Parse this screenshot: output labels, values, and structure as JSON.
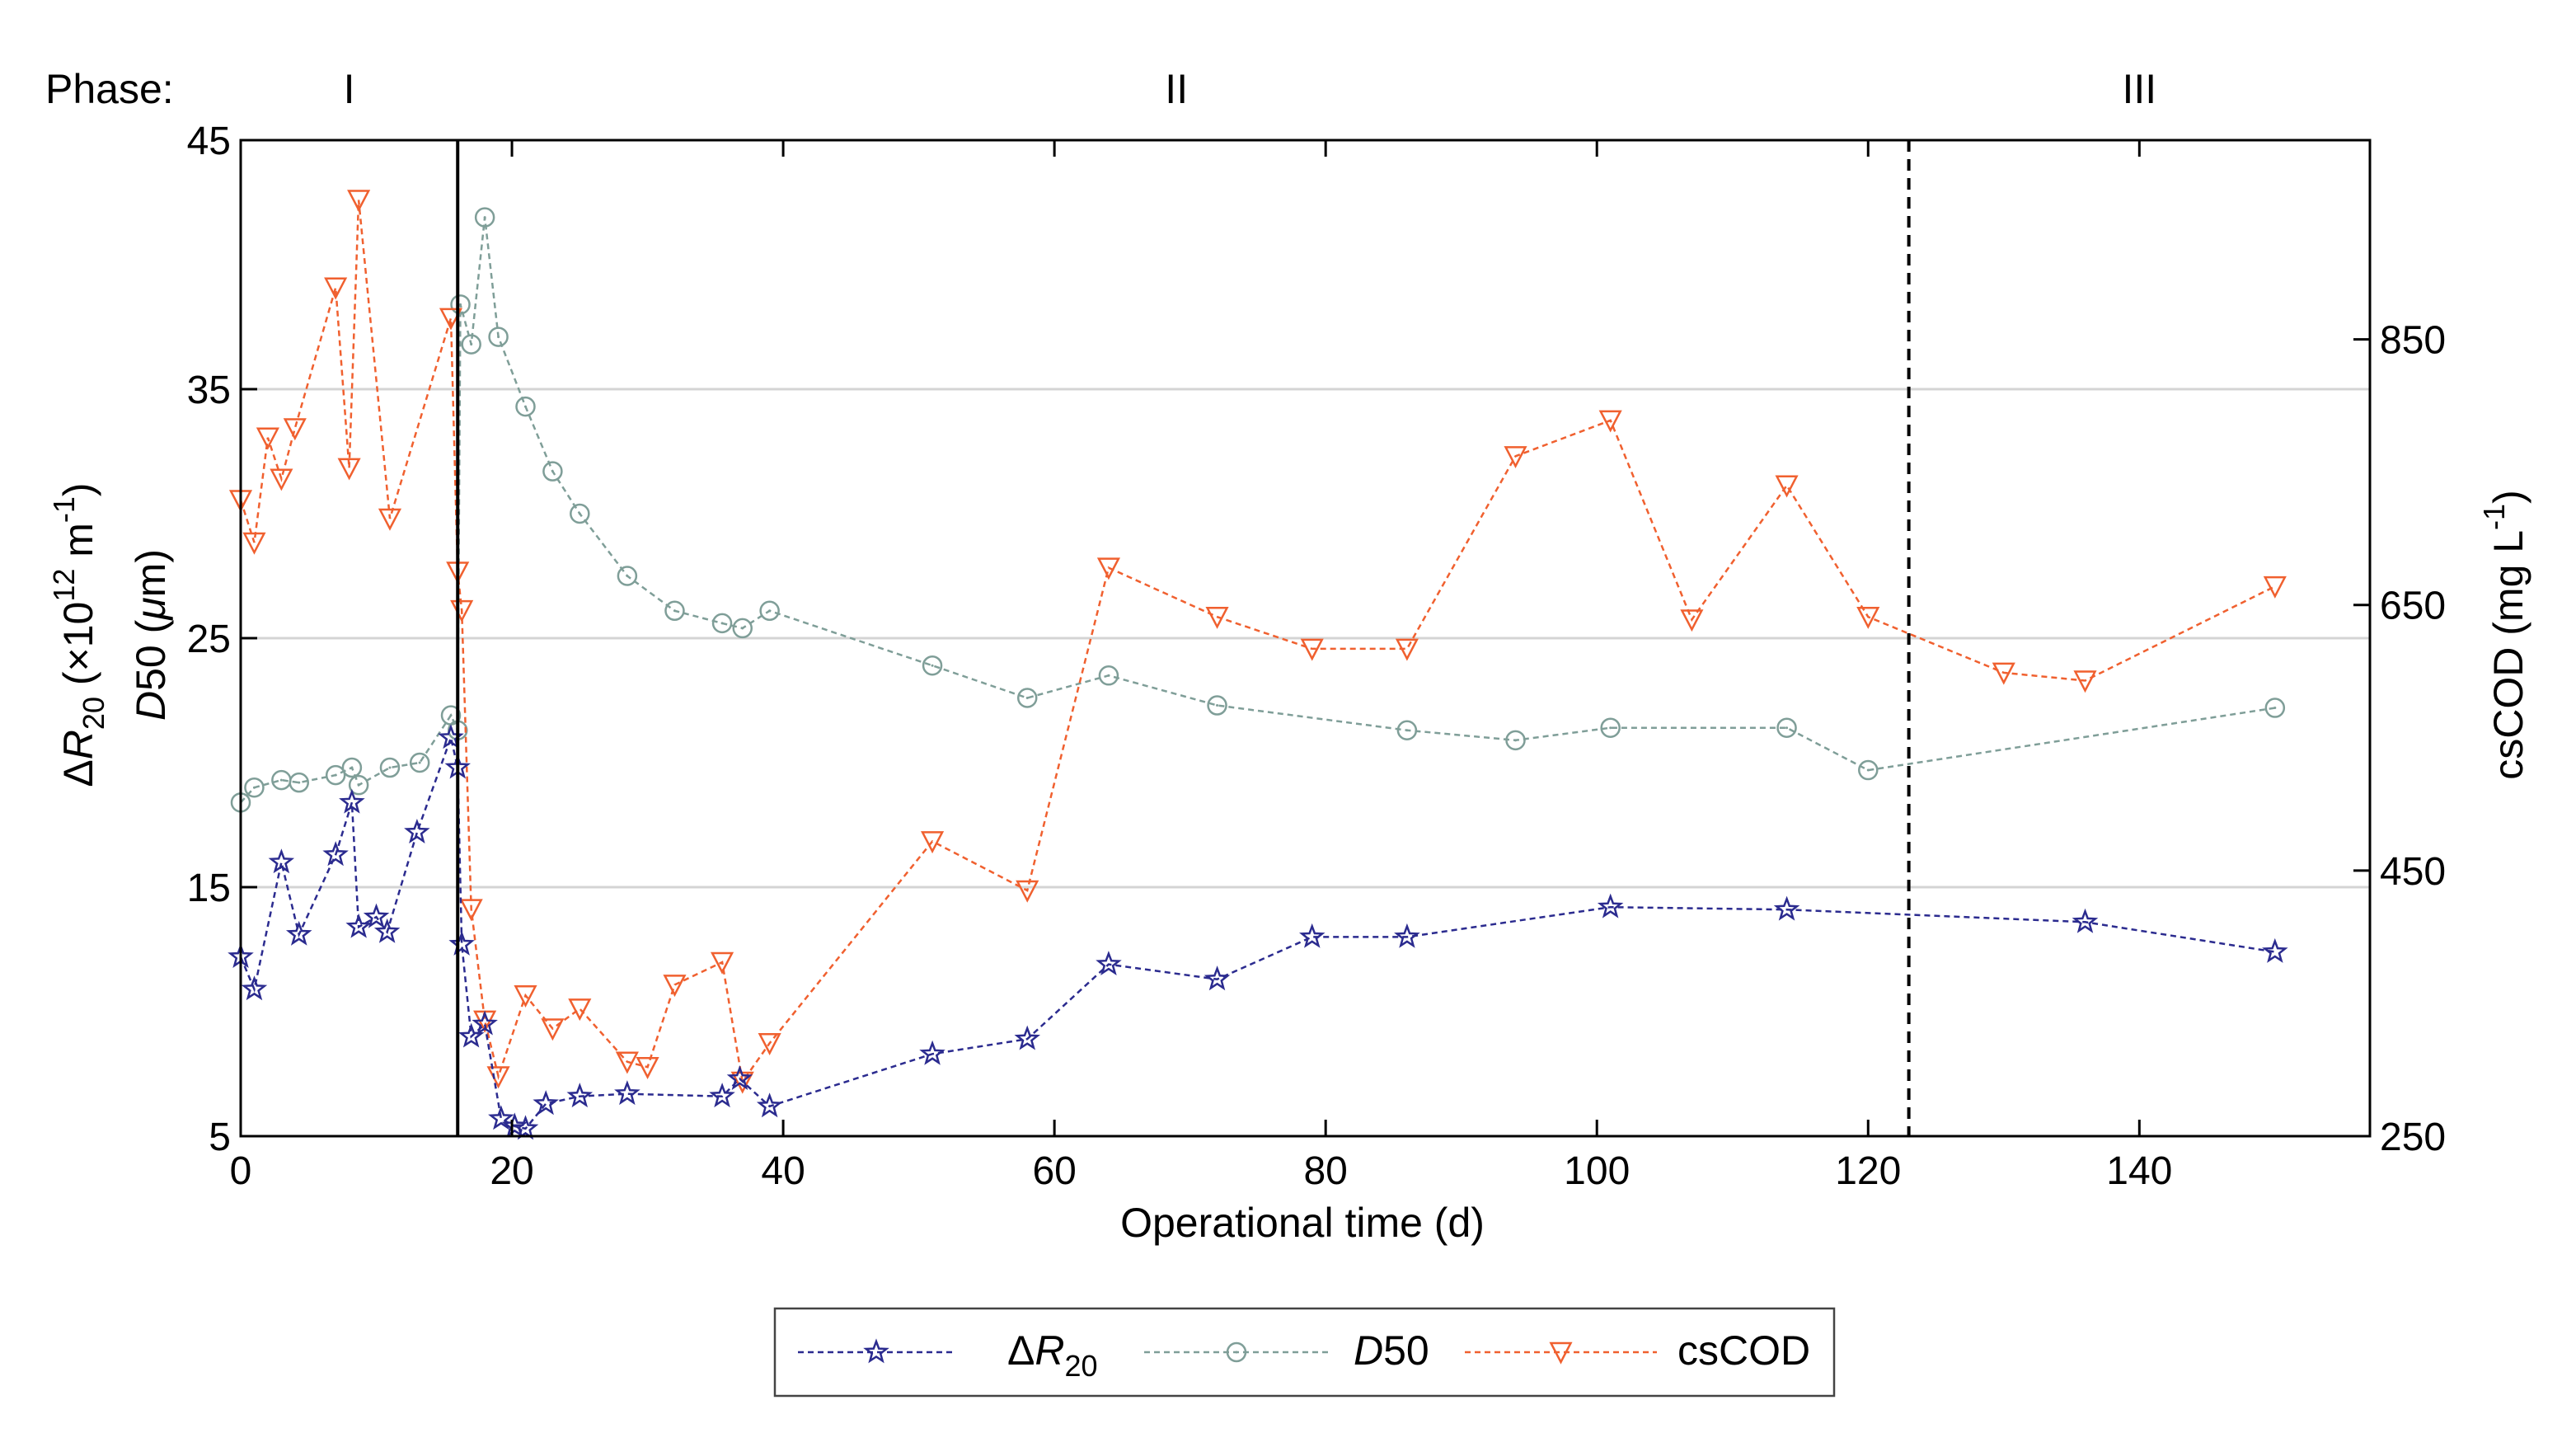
{
  "chart_data": {
    "type": "line",
    "xlabel": "Operational time (d)",
    "ylabel_left": {
      "prefix": "Δ",
      "var": "R",
      "sub": "20",
      "unit_pre": " (×10",
      "exp": "12",
      "unit_mid": " m",
      "exp2": "-1",
      "unit_post": ")"
    },
    "ylabel_left_line2": {
      "var": "D",
      "rest": "50 (",
      "mu": "μ",
      "unit": "m)"
    },
    "ylabel_right": {
      "text": "csCOD (mg L",
      "exp": "-1",
      "post": ")"
    },
    "phase_label": "Phase:",
    "phases": [
      {
        "label": "I",
        "x": 8
      },
      {
        "label": "II",
        "x": 69
      },
      {
        "label": "III",
        "x": 140
      }
    ],
    "phase_boundaries": [
      {
        "x": 16,
        "style": "solid"
      },
      {
        "x": 123,
        "style": "dashed"
      }
    ],
    "xlim": [
      0,
      157
    ],
    "ylim_left": [
      5,
      45
    ],
    "ylim_right": [
      250,
      1000
    ],
    "x_ticks": [
      0,
      20,
      40,
      60,
      80,
      100,
      120,
      140
    ],
    "y_ticks_left": [
      5,
      15,
      25,
      35,
      45
    ],
    "y_ticks_right": [
      250,
      450,
      650,
      850
    ],
    "gridlines_left": [
      15,
      25,
      35
    ],
    "series": [
      {
        "name": "ΔR20",
        "legend": {
          "prefix": "Δ",
          "var": "R",
          "sub": "20"
        },
        "axis": "left",
        "color": "#2b2b8f",
        "marker": "star",
        "x": [
          0,
          1,
          3,
          4.3,
          7,
          8.2,
          8.7,
          10,
          10.8,
          13,
          15.5,
          16,
          16.3,
          17,
          18,
          19.2,
          20.2,
          21,
          22.5,
          25,
          28.5,
          35.5,
          36.8,
          39,
          51,
          58,
          64,
          72,
          79,
          86,
          101,
          114,
          136,
          150
        ],
        "values": [
          12.2,
          10.9,
          16,
          13.1,
          16.3,
          18.4,
          13.4,
          13.8,
          13.2,
          17.2,
          21,
          19.8,
          12.7,
          9,
          9.5,
          5.7,
          5.4,
          5.3,
          6.3,
          6.6,
          6.7,
          6.6,
          7.3,
          6.2,
          8.3,
          8.9,
          11.9,
          11.3,
          13,
          13,
          14.2,
          14.1,
          13.6,
          12.4
        ]
      },
      {
        "name": "D50",
        "legend": {
          "var": "D",
          "rest": "50"
        },
        "axis": "left",
        "color": "#7f9e98",
        "marker": "circle",
        "x": [
          0,
          1,
          3,
          4.3,
          7,
          8.2,
          8.7,
          11,
          13.2,
          15.5,
          16,
          16.2,
          17,
          18,
          19,
          21,
          23,
          25,
          28.5,
          32,
          35.5,
          37,
          39,
          51,
          58,
          64,
          72,
          86,
          94,
          101,
          114,
          120,
          150
        ],
        "values": [
          18.4,
          19,
          19.3,
          19.2,
          19.5,
          19.8,
          19.1,
          19.8,
          20,
          21.9,
          21.3,
          38.4,
          36.8,
          41.9,
          37.1,
          34.3,
          31.7,
          30,
          27.5,
          26.1,
          25.6,
          25.4,
          26.1,
          23.9,
          22.6,
          23.5,
          22.3,
          21.3,
          20.9,
          21.4,
          21.4,
          19.7,
          22.2
        ]
      },
      {
        "name": "csCOD",
        "legend": {
          "text": "csCOD"
        },
        "axis": "right",
        "color": "#f0602f",
        "marker": "triangle-down",
        "x": [
          0,
          1,
          2,
          3,
          4,
          7,
          8,
          8.7,
          11,
          15.5,
          16,
          16.3,
          17,
          18,
          19,
          21,
          23,
          25,
          28.5,
          30,
          32,
          35.5,
          37,
          39,
          51,
          58,
          64,
          72,
          79,
          86,
          94,
          101,
          107,
          114,
          120,
          130,
          136,
          150
        ],
        "values": [
          729,
          697,
          776,
          745,
          783,
          889,
          753,
          955,
          715,
          866,
          675,
          646,
          421,
          337,
          295,
          356,
          331,
          346,
          306,
          302,
          364,
          381,
          291,
          320,
          472,
          435,
          678,
          641,
          617,
          617,
          762,
          789,
          639,
          740,
          641,
          599,
          593,
          664
        ]
      }
    ]
  }
}
